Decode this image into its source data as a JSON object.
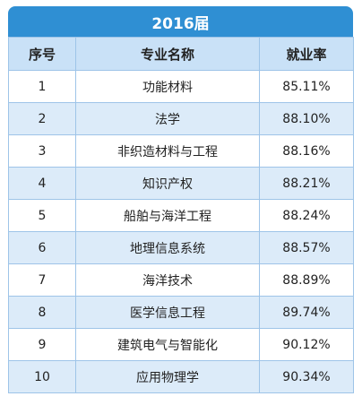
{
  "title": "2016届",
  "headers": {
    "index": "序号",
    "major": "专业名称",
    "rate": "就业率"
  },
  "rows": [
    {
      "index": "1",
      "major": "功能材料",
      "rate": "85.11%"
    },
    {
      "index": "2",
      "major": "法学",
      "rate": "88.10%"
    },
    {
      "index": "3",
      "major": "非织造材料与工程",
      "rate": "88.16%"
    },
    {
      "index": "4",
      "major": "知识产权",
      "rate": "88.21%"
    },
    {
      "index": "5",
      "major": "船舶与海洋工程",
      "rate": "88.24%"
    },
    {
      "index": "6",
      "major": "地理信息系统",
      "rate": "88.57%"
    },
    {
      "index": "7",
      "major": "海洋技术",
      "rate": "88.89%"
    },
    {
      "index": "8",
      "major": "医学信息工程",
      "rate": "89.74%"
    },
    {
      "index": "9",
      "major": "建筑电气与智能化",
      "rate": "90.12%"
    },
    {
      "index": "10",
      "major": "应用物理学",
      "rate": "90.34%"
    }
  ],
  "colors": {
    "title_bg": "#2f8fd3",
    "header_bg": "#c9e1f7",
    "stripe": "#dcebf9"
  }
}
